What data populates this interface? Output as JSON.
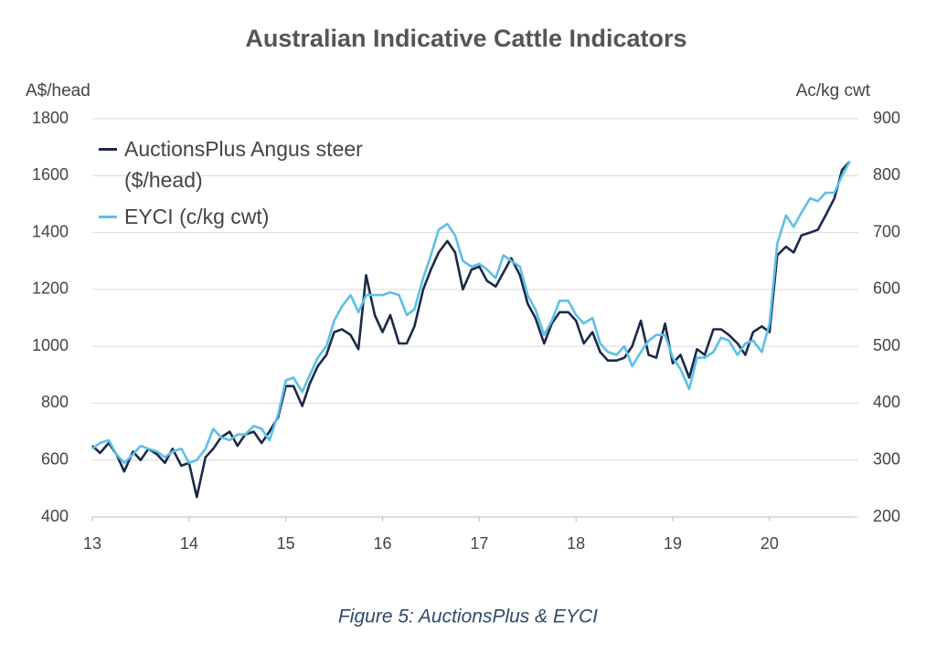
{
  "chart_data": {
    "type": "line",
    "title": "Australian Indicative Cattle Indicators",
    "y_label": "A$/head",
    "y2_label": "Ac/kg cwt",
    "caption": "Figure 5: AuctionsPlus & EYCI",
    "x": [
      13,
      13.08,
      13.17,
      13.25,
      13.33,
      13.42,
      13.5,
      13.58,
      13.67,
      13.75,
      13.83,
      13.92,
      14,
      14.08,
      14.17,
      14.25,
      14.33,
      14.42,
      14.5,
      14.58,
      14.67,
      14.75,
      14.83,
      14.92,
      15,
      15.08,
      15.17,
      15.25,
      15.33,
      15.42,
      15.5,
      15.58,
      15.67,
      15.75,
      15.83,
      15.92,
      16,
      16.08,
      16.17,
      16.25,
      16.33,
      16.42,
      16.5,
      16.58,
      16.67,
      16.75,
      16.83,
      16.92,
      17,
      17.08,
      17.17,
      17.25,
      17.33,
      17.42,
      17.5,
      17.58,
      17.67,
      17.75,
      17.83,
      17.92,
      18,
      18.08,
      18.17,
      18.25,
      18.33,
      18.42,
      18.5,
      18.58,
      18.67,
      18.75,
      18.83,
      18.92,
      19,
      19.08,
      19.17,
      19.25,
      19.33,
      19.42,
      19.5,
      19.58,
      19.67,
      19.75,
      19.83,
      19.92,
      20,
      20.08,
      20.17,
      20.25,
      20.33,
      20.42,
      20.5,
      20.58,
      20.67,
      20.75,
      20.83
    ],
    "xlim": [
      13,
      20.88
    ],
    "xticks": [
      13,
      14,
      15,
      16,
      17,
      18,
      19,
      20
    ],
    "ylim": [
      400,
      1800
    ],
    "yticks": [
      400,
      600,
      800,
      1000,
      1200,
      1400,
      1600,
      1800
    ],
    "y2lim": [
      200,
      900
    ],
    "y2ticks": [
      200,
      300,
      400,
      500,
      600,
      700,
      800,
      900
    ],
    "grid": true,
    "legend": "upper left",
    "series": [
      {
        "name": "AuctionsPlus Angus steer ($/head)",
        "color": "#1b2a4a",
        "values": [
          650,
          625,
          660,
          620,
          560,
          630,
          600,
          640,
          620,
          590,
          640,
          580,
          590,
          470,
          610,
          640,
          680,
          700,
          650,
          690,
          700,
          660,
          700,
          750,
          860,
          860,
          790,
          870,
          930,
          970,
          1050,
          1060,
          1040,
          990,
          1250,
          1110,
          1050,
          1110,
          1010,
          1010,
          1070,
          1200,
          1270,
          1330,
          1370,
          1330,
          1200,
          1270,
          1280,
          1230,
          1210,
          1260,
          1310,
          1250,
          1150,
          1100,
          1010,
          1080,
          1120,
          1120,
          1090,
          1010,
          1050,
          980,
          950,
          950,
          960,
          1000,
          1090,
          970,
          960,
          1080,
          940,
          970,
          890,
          990,
          970,
          1060,
          1060,
          1040,
          1010,
          970,
          1050,
          1070,
          1050,
          1320,
          1350,
          1330,
          1390,
          1400,
          1410,
          1460,
          1520,
          1620,
          1650
        ]
      },
      {
        "name": "EYCI (c/kg cwt)",
        "color": "#5bc0e8",
        "axis": "y2",
        "values": [
          320,
          330,
          335,
          310,
          295,
          310,
          325,
          320,
          315,
          305,
          315,
          320,
          295,
          300,
          320,
          355,
          340,
          335,
          345,
          345,
          360,
          355,
          335,
          380,
          440,
          445,
          420,
          450,
          480,
          500,
          545,
          570,
          590,
          560,
          590,
          590,
          590,
          595,
          590,
          555,
          565,
          620,
          660,
          705,
          715,
          695,
          650,
          640,
          645,
          635,
          620,
          660,
          650,
          640,
          590,
          565,
          520,
          545,
          580,
          580,
          555,
          540,
          550,
          505,
          490,
          485,
          500,
          465,
          490,
          510,
          520,
          520,
          480,
          460,
          425,
          480,
          480,
          490,
          515,
          510,
          485,
          505,
          510,
          490,
          540,
          680,
          730,
          710,
          735,
          760,
          755,
          770,
          770,
          800,
          825
        ]
      }
    ]
  }
}
